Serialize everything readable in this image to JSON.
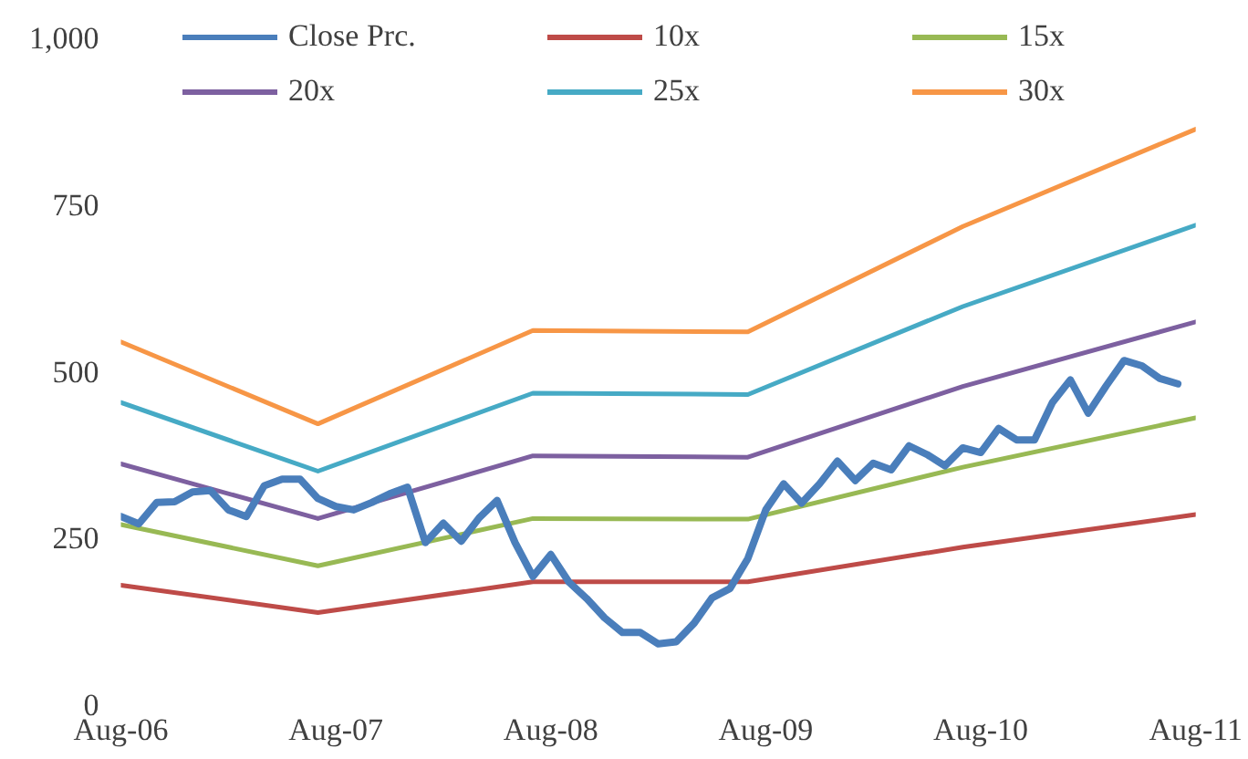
{
  "chart_data": {
    "type": "line",
    "x": [
      "2006-08",
      "2006-09",
      "2006-10",
      "2006-11",
      "2006-12",
      "2007-01",
      "2007-02",
      "2007-03",
      "2007-04",
      "2007-05",
      "2007-06",
      "2007-07",
      "2007-08",
      "2007-09",
      "2007-10",
      "2007-11",
      "2007-12",
      "2008-01",
      "2008-02",
      "2008-03",
      "2008-04",
      "2008-05",
      "2008-06",
      "2008-07",
      "2008-08",
      "2008-09",
      "2008-10",
      "2008-11",
      "2008-12",
      "2009-01",
      "2009-02",
      "2009-03",
      "2009-04",
      "2009-05",
      "2009-06",
      "2009-07",
      "2009-08",
      "2009-09",
      "2009-10",
      "2009-11",
      "2009-12",
      "2010-01",
      "2010-02",
      "2010-03",
      "2010-04",
      "2010-05",
      "2010-06",
      "2010-07",
      "2010-08",
      "2010-09",
      "2010-10",
      "2010-11",
      "2010-12",
      "2011-01",
      "2011-02",
      "2011-03",
      "2011-04",
      "2011-05",
      "2011-06",
      "2011-07"
    ],
    "series": [
      {
        "name": "Close Prc.",
        "color": "#4a7ebb",
        "values": [
          286,
          275,
          307,
          308,
          323,
          325,
          296,
          286,
          332,
          342,
          342,
          313,
          301,
          296,
          307,
          320,
          330,
          247,
          276,
          249,
          284,
          310,
          247,
          196,
          229,
          188,
          163,
          134,
          112,
          112,
          95,
          98,
          126,
          164,
          178,
          223,
          296,
          335,
          306,
          335,
          369,
          340,
          366,
          356,
          392,
          379,
          362,
          389,
          382,
          418,
          401,
          401,
          457,
          491,
          441,
          482,
          520,
          512,
          493,
          485
        ]
      },
      {
        "name": "10x",
        "color": "#be4b48",
        "x": [
          "2006-08",
          "2007-07",
          "2008-07",
          "2009-07",
          "2010-07",
          "2011-08"
        ],
        "values": [
          183,
          142,
          188,
          188,
          240,
          289
        ]
      },
      {
        "name": "15x",
        "color": "#98b954",
        "x": [
          "2006-08",
          "2007-07",
          "2008-07",
          "2009-07",
          "2010-07",
          "2011-08"
        ],
        "values": [
          274,
          212,
          283,
          282,
          360,
          434
        ]
      },
      {
        "name": "20x",
        "color": "#7d60a0",
        "x": [
          "2006-08",
          "2007-07",
          "2008-07",
          "2009-07",
          "2010-07",
          "2011-08"
        ],
        "values": [
          365,
          283,
          377,
          375,
          481,
          578
        ]
      },
      {
        "name": "25x",
        "color": "#46aac5",
        "x": [
          "2006-08",
          "2007-07",
          "2008-07",
          "2009-07",
          "2010-07",
          "2011-08"
        ],
        "values": [
          457,
          354,
          471,
          469,
          601,
          723
        ]
      },
      {
        "name": "30x",
        "color": "#f79646",
        "x": [
          "2006-08",
          "2007-07",
          "2008-07",
          "2009-07",
          "2010-07",
          "2011-08"
        ],
        "values": [
          548,
          425,
          565,
          563,
          721,
          867
        ]
      }
    ],
    "xlim": [
      "2006-08",
      "2011-08"
    ],
    "xticks": [
      {
        "value": "2006-08",
        "label": "Aug-06"
      },
      {
        "value": "2007-08",
        "label": "Aug-07"
      },
      {
        "value": "2008-08",
        "label": "Aug-08"
      },
      {
        "value": "2009-08",
        "label": "Aug-09"
      },
      {
        "value": "2010-08",
        "label": "Aug-10"
      },
      {
        "value": "2011-08",
        "label": "Aug-11"
      }
    ],
    "ylim": [
      0,
      1000
    ],
    "yticks": [
      0,
      {
        "value": 250,
        "label": "250"
      },
      {
        "value": 500,
        "label": "500"
      },
      {
        "value": 750,
        "label": "750"
      },
      {
        "value": 1000,
        "label": "1,000"
      }
    ],
    "grid": false,
    "legend": "top",
    "marker": "none",
    "line_style": "solid"
  }
}
